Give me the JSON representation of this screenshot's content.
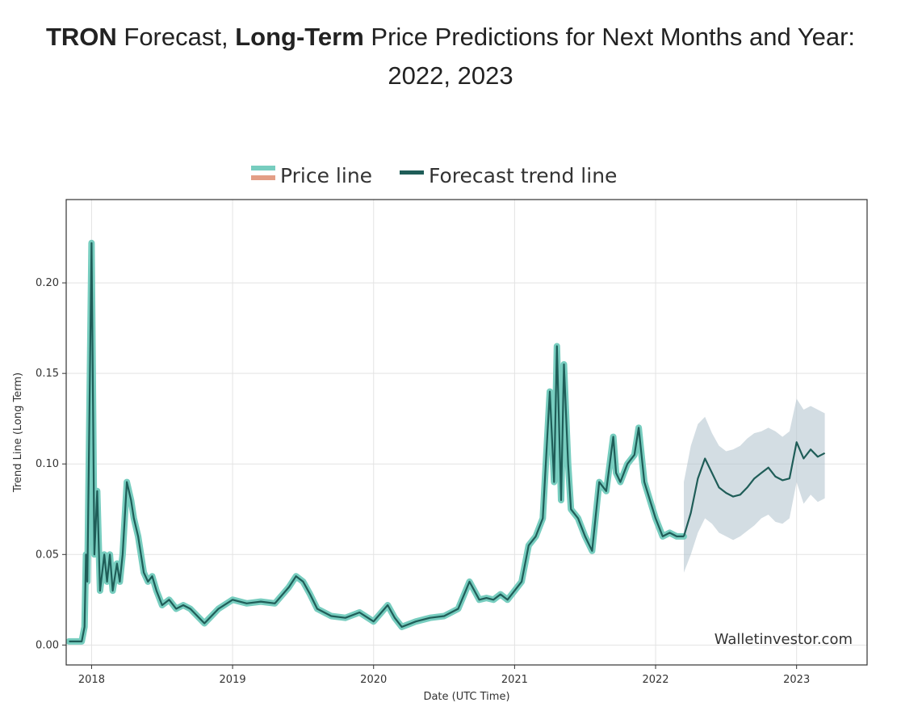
{
  "page_title": {
    "part1_bold": "TRON",
    "part2": " Forecast, ",
    "part3_bold": "Long-Term",
    "part4": " Price Predictions for Next Months and Year:",
    "line2": "2022, 2023"
  },
  "colors": {
    "price_line": "#77cdbf",
    "price_line_alt": "#e39e86",
    "forecast_line": "#1f5d58",
    "band": "#b5c7d0",
    "grid": "#e3e3e3",
    "axis": "#333333"
  },
  "chart_data": {
    "type": "line",
    "title": "",
    "xlabel": "Date (UTC Time)",
    "ylabel": "Trend Line (Long Term)",
    "xlim": [
      2017.82,
      2023.5
    ],
    "ylim": [
      -0.011,
      0.246
    ],
    "x_ticks": [
      2018,
      2019,
      2020,
      2021,
      2022,
      2023
    ],
    "x_tick_labels": [
      "2018",
      "2019",
      "2020",
      "2021",
      "2022",
      "2023"
    ],
    "y_ticks": [
      0.0,
      0.05,
      0.1,
      0.15,
      0.2
    ],
    "y_tick_labels": [
      "0.00",
      "0.05",
      "0.10",
      "0.15",
      "0.20"
    ],
    "grid": true,
    "legend": {
      "position": "top-center",
      "entries": [
        {
          "label": "Price line",
          "swatch": "two-tone"
        },
        {
          "label": "Forecast trend line",
          "swatch": "line"
        }
      ]
    },
    "watermark": "Walletinvestor.com",
    "series": [
      {
        "name": "Price line",
        "x": [
          2017.84,
          2017.93,
          2017.95,
          2017.96,
          2017.97,
          2018.0,
          2018.02,
          2018.04,
          2018.06,
          2018.09,
          2018.11,
          2018.13,
          2018.15,
          2018.18,
          2018.2,
          2018.22,
          2018.25,
          2018.28,
          2018.3,
          2018.33,
          2018.35,
          2018.37,
          2018.4,
          2018.43,
          2018.46,
          2018.5,
          2018.55,
          2018.6,
          2018.65,
          2018.7,
          2018.8,
          2018.9,
          2019.0,
          2019.1,
          2019.2,
          2019.3,
          2019.4,
          2019.45,
          2019.5,
          2019.55,
          2019.6,
          2019.7,
          2019.8,
          2019.9,
          2020.0,
          2020.1,
          2020.15,
          2020.2,
          2020.3,
          2020.4,
          2020.5,
          2020.6,
          2020.68,
          2020.75,
          2020.8,
          2020.85,
          2020.9,
          2020.95,
          2021.0,
          2021.05,
          2021.1,
          2021.15,
          2021.2,
          2021.25,
          2021.28,
          2021.3,
          2021.33,
          2021.35,
          2021.38,
          2021.4,
          2021.45,
          2021.5,
          2021.55,
          2021.6,
          2021.65,
          2021.7,
          2021.72,
          2021.75,
          2021.8,
          2021.85,
          2021.88,
          2021.92,
          2021.96,
          2022.0,
          2022.05,
          2022.1,
          2022.15,
          2022.2
        ],
        "values": [
          0.002,
          0.002,
          0.01,
          0.05,
          0.035,
          0.222,
          0.05,
          0.085,
          0.03,
          0.05,
          0.035,
          0.05,
          0.03,
          0.045,
          0.035,
          0.05,
          0.09,
          0.08,
          0.07,
          0.06,
          0.05,
          0.04,
          0.035,
          0.038,
          0.03,
          0.022,
          0.025,
          0.02,
          0.022,
          0.02,
          0.012,
          0.02,
          0.025,
          0.023,
          0.024,
          0.023,
          0.032,
          0.038,
          0.035,
          0.028,
          0.02,
          0.016,
          0.015,
          0.018,
          0.013,
          0.022,
          0.015,
          0.01,
          0.013,
          0.015,
          0.016,
          0.02,
          0.035,
          0.025,
          0.026,
          0.025,
          0.028,
          0.025,
          0.03,
          0.035,
          0.055,
          0.06,
          0.07,
          0.14,
          0.09,
          0.165,
          0.08,
          0.155,
          0.1,
          0.075,
          0.07,
          0.06,
          0.052,
          0.09,
          0.085,
          0.115,
          0.095,
          0.09,
          0.1,
          0.105,
          0.12,
          0.09,
          0.08,
          0.07,
          0.06,
          0.062,
          0.06,
          0.06
        ]
      },
      {
        "name": "Forecast trend line",
        "x": [
          2022.2,
          2022.25,
          2022.3,
          2022.35,
          2022.4,
          2022.45,
          2022.5,
          2022.55,
          2022.6,
          2022.65,
          2022.7,
          2022.75,
          2022.8,
          2022.85,
          2022.9,
          2022.95,
          2023.0,
          2023.05,
          2023.1,
          2023.15,
          2023.2
        ],
        "values": [
          0.06,
          0.073,
          0.092,
          0.103,
          0.095,
          0.087,
          0.084,
          0.082,
          0.083,
          0.087,
          0.092,
          0.095,
          0.098,
          0.093,
          0.091,
          0.092,
          0.112,
          0.103,
          0.108,
          0.104,
          0.106
        ]
      },
      {
        "name": "Forecast upper bound",
        "x": [
          2022.2,
          2022.25,
          2022.3,
          2022.35,
          2022.4,
          2022.45,
          2022.5,
          2022.55,
          2022.6,
          2022.65,
          2022.7,
          2022.75,
          2022.8,
          2022.85,
          2022.9,
          2022.95,
          2023.0,
          2023.05,
          2023.1,
          2023.15,
          2023.2
        ],
        "values": [
          0.09,
          0.11,
          0.122,
          0.126,
          0.117,
          0.11,
          0.107,
          0.108,
          0.11,
          0.114,
          0.117,
          0.118,
          0.12,
          0.118,
          0.115,
          0.118,
          0.136,
          0.13,
          0.132,
          0.13,
          0.128
        ]
      },
      {
        "name": "Forecast lower bound",
        "x": [
          2022.2,
          2022.25,
          2022.3,
          2022.35,
          2022.4,
          2022.45,
          2022.5,
          2022.55,
          2022.6,
          2022.65,
          2022.7,
          2022.75,
          2022.8,
          2022.85,
          2022.9,
          2022.95,
          2023.0,
          2023.05,
          2023.1,
          2023.15,
          2023.2
        ],
        "values": [
          0.04,
          0.05,
          0.062,
          0.07,
          0.067,
          0.062,
          0.06,
          0.058,
          0.06,
          0.063,
          0.066,
          0.07,
          0.072,
          0.068,
          0.067,
          0.07,
          0.09,
          0.078,
          0.083,
          0.079,
          0.081
        ]
      }
    ]
  }
}
